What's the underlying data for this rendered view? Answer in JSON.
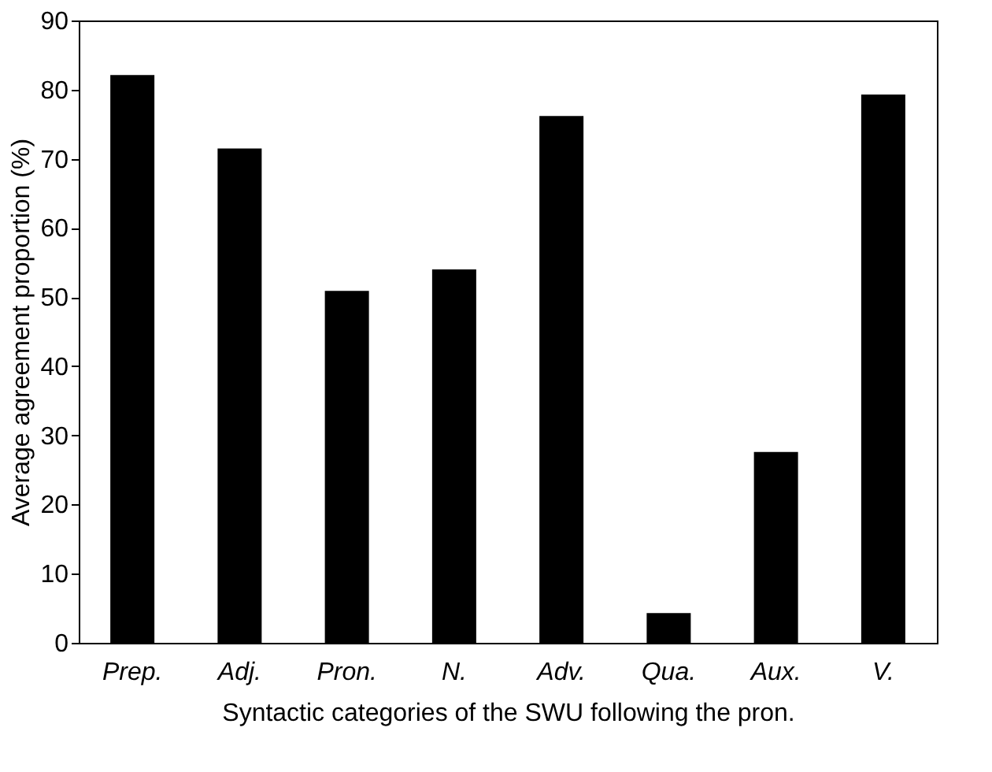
{
  "chart_data": {
    "type": "bar",
    "xlabel": "Syntactic categories of the SWU following the pron.",
    "ylabel": "Average agreement proportion (%)",
    "categories": [
      "Prep.",
      "Adj.",
      "Pron.",
      "N.",
      "Adv.",
      "Qua.",
      "Aux.",
      "V."
    ],
    "values": [
      82.1,
      71.5,
      50.9,
      54.0,
      76.2,
      4.3,
      27.6,
      79.3
    ],
    "color": "#000000",
    "ylim": [
      0,
      90
    ],
    "yticks": [
      0,
      10,
      20,
      30,
      40,
      50,
      60,
      70,
      80,
      90
    ],
    "grid": false
  }
}
